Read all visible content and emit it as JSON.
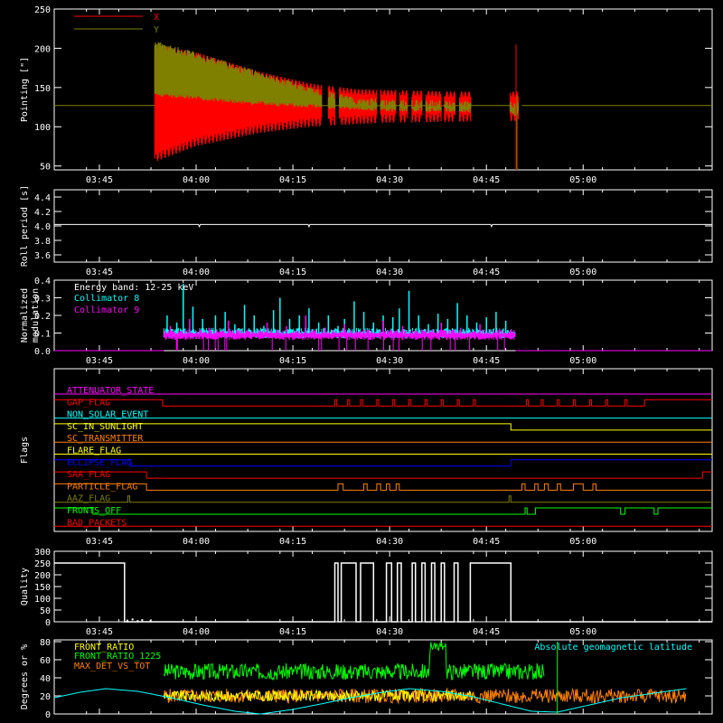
{
  "time_axis": {
    "ticks": [
      "03:45",
      "04:00",
      "04:15",
      "04:30",
      "04:45",
      "05:00"
    ],
    "tick_minutes": [
      225,
      240,
      255,
      270,
      285,
      300
    ],
    "range_minutes": [
      218,
      320
    ]
  },
  "colors": {
    "background": "#000000",
    "axis": "#ffffff",
    "x": "#ff0000",
    "y": "#808000",
    "roll": "#ffffff",
    "cyan": "#00ffff",
    "magenta": "#ff00ff",
    "quality": "#ffffff",
    "green": "#00ff00",
    "yellow": "#ffff00",
    "orange": "#ff8000"
  },
  "chart_data": [
    {
      "type": "area",
      "panel": "pointing",
      "ylabel": "Pointing [\"]",
      "ylim": [
        45,
        250
      ],
      "yticks": [
        "50",
        "100",
        "150",
        "200",
        "250"
      ],
      "legend_position": "top-left",
      "series": [
        {
          "name": "X",
          "baseline": 127,
          "active_start": 233.6,
          "envelope_min": [
            [
              233.6,
              55
            ],
            [
              240,
              75
            ],
            [
              250,
              92
            ],
            [
              258,
              100
            ],
            [
              265,
              103
            ],
            [
              270,
              105
            ],
            [
              280,
              106
            ],
            [
              290,
              107
            ]
          ],
          "envelope_max": [
            [
              233.6,
              205
            ],
            [
              240,
              195
            ],
            [
              250,
              170
            ],
            [
              258,
              155
            ],
            [
              265,
              148
            ],
            [
              270,
              147
            ],
            [
              280,
              145
            ],
            [
              290,
              145
            ]
          ]
        },
        {
          "name": "Y",
          "baseline": 127,
          "active_start": 233.6,
          "envelope_min": [
            [
              233.6,
              145
            ],
            [
              240,
              140
            ],
            [
              250,
              133
            ],
            [
              258,
              130
            ],
            [
              265,
              127
            ],
            [
              270,
              125
            ],
            [
              280,
              125
            ],
            [
              290,
              120
            ]
          ],
          "envelope_max": [
            [
              233.6,
              210
            ],
            [
              240,
              195
            ],
            [
              250,
              170
            ],
            [
              258,
              150
            ],
            [
              265,
              137
            ],
            [
              270,
              135
            ],
            [
              280,
              133
            ],
            [
              290,
              132
            ]
          ]
        }
      ],
      "gaps": [
        [
          259.5,
          260.5
        ],
        [
          261.5,
          262.2
        ],
        [
          268,
          268.6
        ],
        [
          271,
          271.5
        ],
        [
          272.8,
          273.4
        ],
        [
          275,
          275.6
        ],
        [
          278,
          278.5
        ],
        [
          280.2,
          280.8
        ],
        [
          282.6,
          288.6
        ]
      ],
      "spike_minute": 289.6
    },
    {
      "type": "line",
      "panel": "roll_period",
      "ylabel": "Roll period [s]",
      "ylim": [
        3.5,
        4.5
      ],
      "yticks": [
        "3.6",
        "3.8",
        "4.0",
        "4.2",
        "4.4"
      ],
      "value": 4.02,
      "dips": [
        240.5,
        257.5,
        285.8
      ]
    },
    {
      "type": "bar",
      "panel": "modulation",
      "ylabel": "Normalized modulation",
      "ylim": [
        0,
        0.4
      ],
      "yticks": [
        "0.0",
        "0.1",
        "0.2",
        "0.3",
        "0.4"
      ],
      "annotation": "Energy band: 12-25 keV",
      "legend_position": "top-left",
      "active_range": [
        235,
        289.5
      ],
      "series": [
        {
          "name": "Collimator 8",
          "baseline": 0.1,
          "spikes": [
            [
              235.5,
              0.2
            ],
            [
              237,
              0.16
            ],
            [
              238,
              0.38
            ],
            [
              239.5,
              0.25
            ],
            [
              241,
              0.18
            ],
            [
              243,
              0.2
            ],
            [
              244.5,
              0.22
            ],
            [
              246,
              0.15
            ],
            [
              247.5,
              0.26
            ],
            [
              249,
              0.2
            ],
            [
              250.5,
              0.14
            ],
            [
              252,
              0.23
            ],
            [
              253,
              0.3
            ],
            [
              254.5,
              0.18
            ],
            [
              256,
              0.2
            ],
            [
              257.5,
              0.24
            ],
            [
              259,
              0.16
            ],
            [
              260.5,
              0.2
            ],
            [
              262,
              0.14
            ],
            [
              263,
              0.18
            ],
            [
              264.5,
              0.28
            ],
            [
              266,
              0.22
            ],
            [
              267.5,
              0.16
            ],
            [
              269,
              0.2
            ],
            [
              270.5,
              0.19
            ],
            [
              271.5,
              0.24
            ],
            [
              273,
              0.34
            ],
            [
              274.5,
              0.2
            ],
            [
              276,
              0.15
            ],
            [
              277.5,
              0.21
            ],
            [
              279,
              0.18
            ],
            [
              280.5,
              0.27
            ],
            [
              282,
              0.2
            ],
            [
              283.5,
              0.16
            ],
            [
              285,
              0.19
            ],
            [
              286.5,
              0.22
            ],
            [
              288,
              0.17
            ]
          ]
        },
        {
          "name": "Collimator 9",
          "baseline": 0.08,
          "spikes": [
            [
              236,
              0.14
            ],
            [
              239,
              0.18
            ],
            [
              242,
              0.13
            ],
            [
              245,
              0.17
            ],
            [
              248,
              0.12
            ],
            [
              251,
              0.16
            ],
            [
              254,
              0.14
            ],
            [
              257,
              0.2
            ],
            [
              260,
              0.13
            ],
            [
              263,
              0.15
            ],
            [
              266,
              0.12
            ],
            [
              269,
              0.17
            ],
            [
              272,
              0.14
            ],
            [
              275,
              0.12
            ],
            [
              278,
              0.16
            ],
            [
              281,
              0.13
            ],
            [
              284,
              0.15
            ],
            [
              287,
              0.12
            ]
          ]
        }
      ]
    },
    {
      "type": "line",
      "panel": "flags",
      "ylabel": "Flags",
      "flags": [
        {
          "name": "ATTENUATOR_STATE",
          "color": "#ff00ff",
          "high": []
        },
        {
          "name": "GAP_FLAG",
          "color": "#ff0000",
          "high": [
            [
              218,
              234.8
            ],
            [
              261.5,
              261.8
            ],
            [
              263.5,
              263.8
            ],
            [
              265.5,
              265.8
            ],
            [
              268,
              268.3
            ],
            [
              270.5,
              270.8
            ],
            [
              273,
              273.3
            ],
            [
              275.5,
              275.8
            ],
            [
              278,
              278.3
            ],
            [
              280.5,
              280.8
            ],
            [
              283,
              283.3
            ],
            [
              291.2,
              291.5
            ],
            [
              293.5,
              293.8
            ],
            [
              296,
              296.3
            ],
            [
              298.5,
              298.8
            ],
            [
              301,
              301.3
            ],
            [
              303.5,
              303.8
            ],
            [
              306.5,
              306.8
            ],
            [
              309.5,
              320
            ]
          ]
        },
        {
          "name": "NON_SOLAR_EVENT",
          "color": "#00ffff",
          "high": []
        },
        {
          "name": "SC_IN_SUNLIGHT",
          "color": "#ffff00",
          "high": [
            [
              218,
              288.8
            ]
          ]
        },
        {
          "name": "SC_TRANSMITTER",
          "color": "#ff8000",
          "high": []
        },
        {
          "name": "FLARE_FLAG",
          "color": "#ffff00",
          "high": []
        },
        {
          "name": "ECLIPSE_FLAG",
          "color": "#0000ff",
          "high": [
            [
              218,
              229.8
            ],
            [
              288.8,
              320
            ]
          ]
        },
        {
          "name": "SAA_FLAG",
          "color": "#ff0000",
          "high": [
            [
              218,
              232.3
            ],
            [
              318.5,
              320
            ]
          ]
        },
        {
          "name": "PARTICLE_FLAG",
          "color": "#ff8000",
          "high": [
            [
              218,
              232.3
            ],
            [
              262,
              262.8
            ],
            [
              266,
              266.5
            ],
            [
              268,
              268.6
            ],
            [
              269.5,
              270
            ],
            [
              271,
              271.5
            ],
            [
              290.5,
              291
            ],
            [
              292.5,
              293
            ],
            [
              294,
              294.6
            ],
            [
              296,
              296.5
            ],
            [
              298.5,
              300
            ],
            [
              301.5,
              302
            ]
          ]
        },
        {
          "name": "AAZ_FLAG",
          "color": "#808000",
          "high": [
            [
              229.4,
              229.7
            ],
            [
              288.5,
              288.8
            ]
          ]
        },
        {
          "name": "FRONTS_OFF",
          "color": "#00ff00",
          "high": [
            [
              218,
              224
            ],
            [
              291,
              291.3
            ],
            [
              292.6,
              305.8
            ],
            [
              306.5,
              311
            ],
            [
              311.6,
              320
            ]
          ]
        },
        {
          "name": "BAD_PACKETS",
          "color": "#ff0000",
          "high": []
        }
      ]
    },
    {
      "type": "line",
      "panel": "quality",
      "ylabel": "Quality",
      "ylim": [
        0,
        300
      ],
      "yticks": [
        "0",
        "50",
        "100",
        "150",
        "200",
        "250",
        "300"
      ],
      "high_value": 250,
      "high": [
        [
          218,
          228.9
        ],
        [
          261.5,
          262
        ],
        [
          262.5,
          264.8
        ],
        [
          265.5,
          267.5
        ],
        [
          269.5,
          270.3
        ],
        [
          271.2,
          271.8
        ],
        [
          273.5,
          274
        ],
        [
          275,
          275.5
        ],
        [
          276.5,
          277
        ],
        [
          278,
          278.5
        ],
        [
          280,
          280.6
        ],
        [
          282.5,
          288.8
        ]
      ],
      "noise_dots": [
        [
          229.2,
          5
        ],
        [
          230,
          10
        ],
        [
          230.8,
          3
        ],
        [
          231.5,
          7
        ],
        [
          232.8,
          4
        ]
      ]
    },
    {
      "type": "line",
      "panel": "ratios",
      "ylabel": "Degrees or %",
      "ylim": [
        0,
        82
      ],
      "yticks": [
        "0",
        "20",
        "40",
        "60",
        "80"
      ],
      "legend_position": "top-left",
      "right_label": "Absolute geomagnetic latitude",
      "series": [
        {
          "name": "FRONT_RATIO",
          "color": "#ffff00",
          "range": [
            235,
            283
          ],
          "mean": 20,
          "amplitude": 6
        },
        {
          "name": "FRONT_RATIO_1225",
          "color": "#00ff00",
          "range": [
            235,
            294
          ],
          "mean": 47,
          "amplitude": 9,
          "peak": [
            277.5,
            80
          ]
        },
        {
          "name": "MAX_DET_VS_TOT",
          "color": "#ff8000",
          "range": [
            235,
            316
          ],
          "mean": 20,
          "amplitude": 8
        },
        {
          "name": "Absolute geomagnetic latitude",
          "color": "#00ffff",
          "curve": [
            [
              218,
              18
            ],
            [
              222,
              24
            ],
            [
              226,
              28
            ],
            [
              231,
              25
            ],
            [
              236,
              18
            ],
            [
              241,
              10
            ],
            [
              246,
              3
            ],
            [
              250,
              0
            ],
            [
              255,
              5
            ],
            [
              260,
              12
            ],
            [
              264,
              18
            ],
            [
              268,
              23
            ],
            [
              273,
              28
            ],
            [
              278,
              25
            ],
            [
              283,
              19
            ],
            [
              288,
              10
            ],
            [
              292,
              3
            ],
            [
              296,
              2
            ],
            [
              301,
              10
            ],
            [
              306,
              18
            ],
            [
              312,
              24
            ],
            [
              316,
              28
            ]
          ]
        }
      ]
    }
  ]
}
